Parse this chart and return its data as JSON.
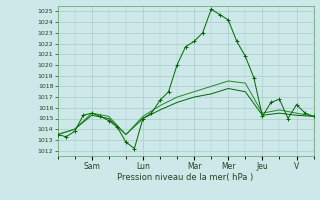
{
  "title": "Pression niveau de la mer( hPa )",
  "ylim": [
    1011.5,
    1025.5
  ],
  "yticks": [
    1012,
    1013,
    1014,
    1015,
    1016,
    1017,
    1018,
    1019,
    1020,
    1021,
    1022,
    1023,
    1024,
    1025
  ],
  "day_labels": [
    "Sam",
    "Lun",
    "Mar",
    "Mer",
    "Jeu",
    "V"
  ],
  "day_positions": [
    16,
    40,
    64,
    80,
    96,
    112
  ],
  "xlim": [
    0,
    120
  ],
  "background_color": "#cce8e8",
  "grid_color": "#aacccc",
  "line_color_dark": "#006600",
  "line_color_mid": "#228822",
  "series1_x": [
    0,
    4,
    8,
    12,
    16,
    20,
    24,
    28,
    32,
    36,
    40,
    44,
    48,
    52,
    56,
    60,
    64,
    68,
    72,
    76,
    80,
    84,
    88,
    92,
    96,
    100,
    104,
    108,
    112,
    116,
    120
  ],
  "series1_y": [
    1013.5,
    1013.3,
    1013.8,
    1015.3,
    1015.5,
    1015.2,
    1014.8,
    1014.2,
    1012.8,
    1012.2,
    1015.0,
    1015.5,
    1016.7,
    1017.5,
    1020.0,
    1021.7,
    1022.2,
    1023.0,
    1025.2,
    1024.7,
    1024.2,
    1022.2,
    1020.8,
    1018.8,
    1015.2,
    1016.5,
    1016.8,
    1015.0,
    1016.3,
    1015.5,
    1015.2
  ],
  "series2_x": [
    0,
    8,
    16,
    24,
    32,
    40,
    48,
    56,
    64,
    72,
    80,
    88,
    96,
    104,
    112,
    120
  ],
  "series2_y": [
    1013.5,
    1014.0,
    1015.5,
    1015.2,
    1013.5,
    1015.2,
    1016.2,
    1017.0,
    1017.5,
    1018.0,
    1018.5,
    1018.3,
    1015.5,
    1015.8,
    1015.5,
    1015.2
  ],
  "series3_x": [
    0,
    8,
    16,
    24,
    32,
    40,
    48,
    56,
    64,
    72,
    80,
    88,
    96,
    104,
    112,
    120
  ],
  "series3_y": [
    1013.5,
    1014.0,
    1015.3,
    1015.0,
    1013.5,
    1015.0,
    1015.8,
    1016.5,
    1017.0,
    1017.3,
    1017.8,
    1017.5,
    1015.3,
    1015.5,
    1015.3,
    1015.2
  ]
}
